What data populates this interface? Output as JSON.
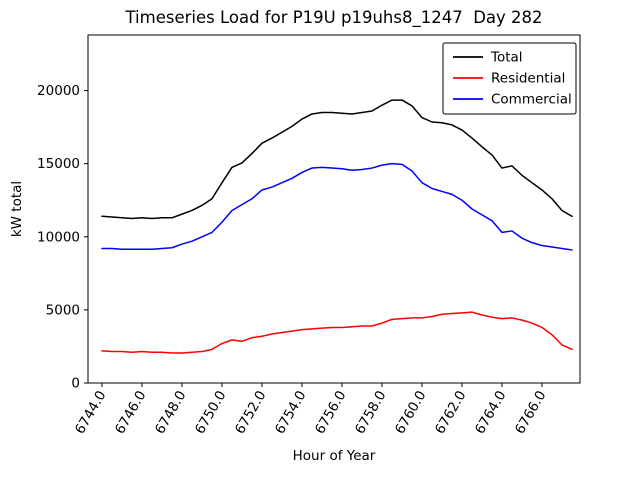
{
  "chart_data": {
    "type": "line",
    "title": "Timeseries Load for P19U p19uhs8_1247  Day 282",
    "xlabel": "Hour of Year",
    "ylabel": "kW total",
    "xlim": [
      6743.3,
      6767.9
    ],
    "ylim": [
      0,
      23800
    ],
    "grid": false,
    "legend_position": "upper right",
    "xticks": [
      6744,
      6746,
      6748,
      6750,
      6752,
      6754,
      6756,
      6758,
      6760,
      6762,
      6764,
      6766
    ],
    "xtick_labels": [
      "6744.0",
      "6746.0",
      "6748.0",
      "6750.0",
      "6752.0",
      "6754.0",
      "6756.0",
      "6758.0",
      "6760.0",
      "6762.0",
      "6764.0",
      "6766.0"
    ],
    "yticks": [
      0,
      5000,
      10000,
      15000,
      20000
    ],
    "ytick_labels": [
      "0",
      "5000",
      "10000",
      "15000",
      "20000"
    ],
    "x": [
      6744.0,
      6744.5,
      6745.0,
      6745.5,
      6746.0,
      6746.5,
      6747.0,
      6747.5,
      6748.0,
      6748.5,
      6749.0,
      6749.5,
      6750.0,
      6750.5,
      6751.0,
      6751.5,
      6752.0,
      6752.5,
      6753.0,
      6753.5,
      6754.0,
      6754.5,
      6755.0,
      6755.5,
      6756.0,
      6756.5,
      6757.0,
      6757.5,
      6758.0,
      6758.5,
      6759.0,
      6759.5,
      6760.0,
      6760.5,
      6761.0,
      6761.5,
      6762.0,
      6762.5,
      6763.0,
      6763.5,
      6764.0,
      6764.5,
      6765.0,
      6765.5,
      6766.0,
      6766.5,
      6767.0,
      6767.5
    ],
    "series": [
      {
        "name": "Total",
        "color": "#000000",
        "values": [
          11400,
          11350,
          11300,
          11250,
          11300,
          11250,
          11300,
          11300,
          11550,
          11800,
          12150,
          12600,
          13700,
          14750,
          15050,
          15700,
          16400,
          16750,
          17150,
          17550,
          18050,
          18400,
          18500,
          18500,
          18450,
          18400,
          18500,
          18600,
          19000,
          19350,
          19350,
          18950,
          18150,
          17850,
          17800,
          17650,
          17300,
          16750,
          16150,
          15600,
          14700,
          14850,
          14200,
          13700,
          13200,
          12600,
          11800,
          11400
        ]
      },
      {
        "name": "Residential",
        "color": "#ff0000",
        "values": [
          2200,
          2150,
          2150,
          2100,
          2150,
          2100,
          2100,
          2050,
          2050,
          2100,
          2150,
          2300,
          2700,
          2950,
          2850,
          3100,
          3200,
          3350,
          3450,
          3550,
          3650,
          3700,
          3750,
          3800,
          3800,
          3850,
          3900,
          3900,
          4100,
          4350,
          4400,
          4450,
          4450,
          4550,
          4700,
          4750,
          4800,
          4850,
          4650,
          4500,
          4400,
          4450,
          4300,
          4100,
          3800,
          3300,
          2600,
          2300
        ]
      },
      {
        "name": "Commercial",
        "color": "#0000ff",
        "values": [
          9200,
          9200,
          9150,
          9150,
          9150,
          9150,
          9200,
          9250,
          9500,
          9700,
          10000,
          10300,
          11000,
          11800,
          12200,
          12600,
          13200,
          13400,
          13700,
          14000,
          14400,
          14700,
          14750,
          14700,
          14650,
          14550,
          14600,
          14700,
          14900,
          15000,
          14950,
          14500,
          13700,
          13300,
          13100,
          12900,
          12500,
          11900,
          11500,
          11100,
          10300,
          10400,
          9900,
          9600,
          9400,
          9300,
          9200,
          9100
        ]
      }
    ]
  }
}
